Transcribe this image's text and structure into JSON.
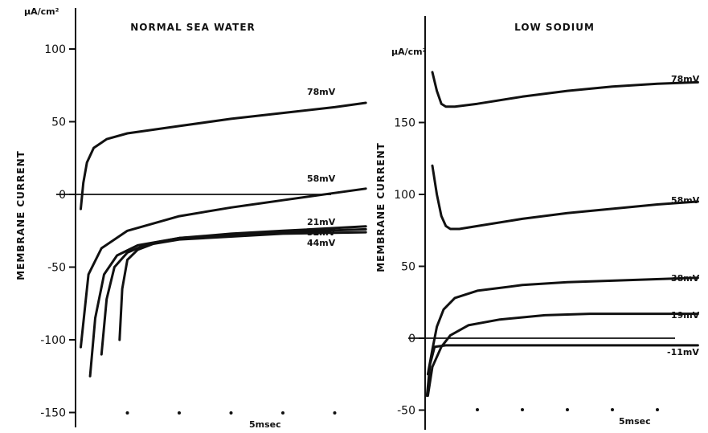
{
  "chart_data": [
    {
      "type": "line",
      "title": "NORMAL SEA WATER",
      "ylabel": "MEMBRANE CURRENT",
      "yunit": "μA/cm²",
      "xlim": [
        0,
        6
      ],
      "ylim": [
        -150,
        130
      ],
      "yticks": [
        100,
        50,
        0,
        -50,
        -100,
        -150
      ],
      "xtick_marks": [
        1,
        2,
        3,
        4,
        5
      ],
      "xtick_label": "5msec",
      "series": [
        {
          "name": "78mV",
          "x": [
            0.1,
            0.15,
            0.22,
            0.35,
            0.6,
            1,
            2,
            3,
            4,
            5,
            5.6
          ],
          "y": [
            -10,
            8,
            22,
            32,
            38,
            42,
            47,
            52,
            56,
            60,
            63
          ]
        },
        {
          "name": "58mV",
          "x": [
            0.1,
            0.25,
            0.5,
            1,
            1.5,
            2,
            3,
            4,
            5,
            5.6
          ],
          "y": [
            -105,
            -55,
            -37,
            -25,
            -20,
            -15,
            -9,
            -4,
            1,
            4
          ]
        },
        {
          "name": "21mV",
          "x": [
            0.28,
            0.38,
            0.55,
            0.8,
            1.2,
            2,
            3,
            4,
            5.6
          ],
          "y": [
            -125,
            -85,
            -55,
            -42,
            -35,
            -30,
            -27,
            -25,
            -22
          ]
        },
        {
          "name": "32mV",
          "x": [
            0.5,
            0.6,
            0.75,
            1,
            1.4,
            2,
            3,
            4,
            5.6
          ],
          "y": [
            -110,
            -72,
            -50,
            -40,
            -34,
            -30,
            -28,
            -26,
            -24
          ]
        },
        {
          "name": "44mV",
          "x": [
            0.85,
            0.9,
            1,
            1.2,
            1.5,
            2,
            3,
            4,
            5.6
          ],
          "y": [
            -100,
            -65,
            -45,
            -38,
            -34,
            -31,
            -29,
            -27,
            -26
          ]
        }
      ]
    },
    {
      "type": "line",
      "title": "LOW SODIUM",
      "ylabel": "MEMBRANE CURRENT",
      "yunit": "μA/cm²",
      "xlim": [
        0,
        6
      ],
      "ylim": [
        -58,
        235
      ],
      "yticks": [
        150,
        100,
        50,
        0,
        -50
      ],
      "xtick_marks": [
        1,
        2,
        3,
        4,
        5
      ],
      "xtick_label": "5msec",
      "series": [
        {
          "name": "78mV",
          "x": [
            0,
            0.1,
            0.2,
            0.3,
            0.5,
            1,
            2,
            3,
            4,
            5,
            5.9
          ],
          "y": [
            185,
            172,
            163,
            161,
            161,
            163,
            168,
            172,
            175,
            177,
            178
          ]
        },
        {
          "name": "58mV",
          "x": [
            0,
            0.1,
            0.2,
            0.3,
            0.4,
            0.6,
            1,
            2,
            3,
            4,
            5,
            5.9
          ],
          "y": [
            120,
            100,
            85,
            78,
            76,
            76,
            78,
            83,
            87,
            90,
            93,
            95
          ]
        },
        {
          "name": "38mV",
          "x": [
            -0.1,
            0,
            0.1,
            0.25,
            0.5,
            1,
            2,
            3,
            4,
            5.9
          ],
          "y": [
            -25,
            -8,
            8,
            20,
            28,
            33,
            37,
            39,
            40,
            42
          ]
        },
        {
          "name": "19mV",
          "x": [
            -0.1,
            0,
            0.2,
            0.4,
            0.8,
            1.5,
            2.5,
            3.5,
            5.9
          ],
          "y": [
            -40,
            -20,
            -6,
            2,
            9,
            13,
            16,
            17,
            17
          ]
        },
        {
          "name": "-11mV",
          "x": [
            -0.12,
            -0.05,
            0.05,
            0.3,
            1,
            3,
            5.9
          ],
          "y": [
            -40,
            -18,
            -6,
            -5,
            -5,
            -5,
            -5
          ]
        }
      ]
    }
  ]
}
